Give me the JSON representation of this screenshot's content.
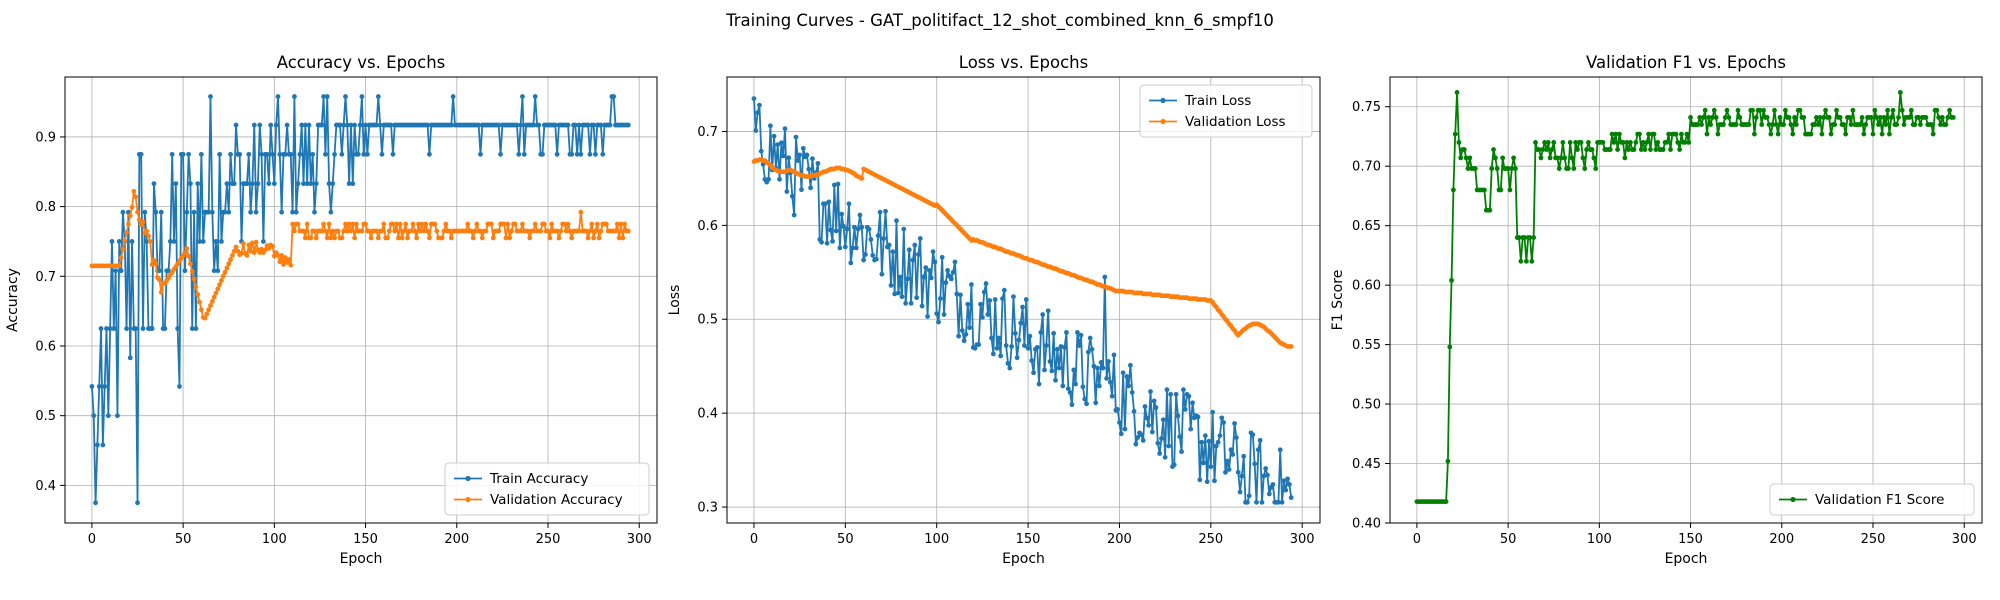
{
  "suptitle": "Training Curves - GAT_politifact_12_shot_combined_knn_6_smpf10",
  "colors": {
    "blue": "#1f77b4",
    "orange": "#ff7f0e",
    "green": "#008000"
  },
  "chart_data": [
    {
      "type": "line",
      "title": "Accuracy vs. Epochs",
      "xlabel": "Epoch",
      "ylabel": "Accuracy",
      "xlim": [
        -14.75,
        309.75
      ],
      "ylim": [
        0.346,
        0.986
      ],
      "xticks": [
        0,
        50,
        100,
        150,
        200,
        250,
        300
      ],
      "yticks": [
        0.4,
        0.5,
        0.6,
        0.7,
        0.8,
        0.9
      ],
      "grid": true,
      "legend": "lower right",
      "series": [
        {
          "name": "Train Accuracy",
          "color": "#1f77b4",
          "gen": "train_acc"
        },
        {
          "name": "Validation Accuracy",
          "color": "#ff7f0e",
          "gen": "val_acc"
        }
      ]
    },
    {
      "type": "line",
      "title": "Loss vs. Epochs",
      "xlabel": "Epoch",
      "ylabel": "Loss",
      "xlim": [
        -14.75,
        309.75
      ],
      "ylim": [
        0.283,
        0.758
      ],
      "xticks": [
        0,
        50,
        100,
        150,
        200,
        250,
        300
      ],
      "yticks": [
        0.3,
        0.4,
        0.5,
        0.6,
        0.7
      ],
      "grid": true,
      "legend": "upper right",
      "series": [
        {
          "name": "Train Loss",
          "color": "#1f77b4",
          "gen": "train_loss"
        },
        {
          "name": "Validation Loss",
          "color": "#ff7f0e",
          "gen": "val_loss"
        }
      ]
    },
    {
      "type": "line",
      "title": "Validation F1 vs. Epochs",
      "xlabel": "Epoch",
      "ylabel": "F1 Score",
      "xlim": [
        -14.75,
        309.75
      ],
      "ylim": [
        0.4,
        0.775
      ],
      "xticks": [
        0,
        50,
        100,
        150,
        200,
        250,
        300
      ],
      "yticks": [
        0.4,
        0.45,
        0.5,
        0.55,
        0.6,
        0.65,
        0.7,
        0.75
      ],
      "grid": true,
      "legend": "lower right",
      "series": [
        {
          "name": "Validation F1 Score",
          "color": "#008000",
          "gen": "val_f1"
        }
      ]
    }
  ]
}
